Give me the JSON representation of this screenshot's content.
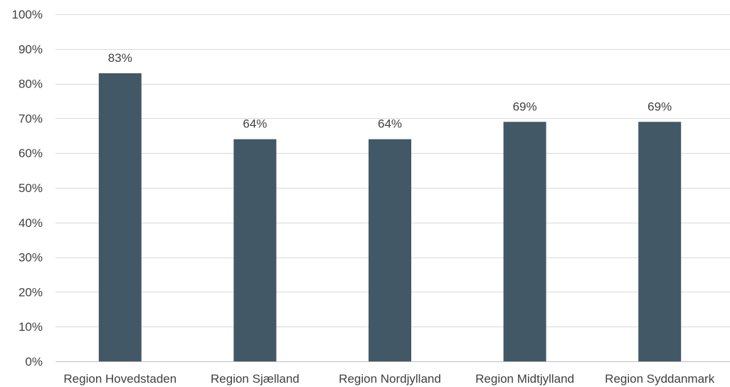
{
  "chart_data": {
    "type": "bar",
    "title": "",
    "xlabel": "",
    "ylabel": "",
    "categories": [
      "Region Hovedstaden",
      "Region Sjælland",
      "Region Nordjylland",
      "Region Midtjylland",
      "Region Syddanmark"
    ],
    "values": [
      83,
      64,
      64,
      69,
      69
    ],
    "data_labels": [
      "83%",
      "64%",
      "64%",
      "69%",
      "69%"
    ],
    "ylim": [
      0,
      100
    ],
    "y_ticks": [
      "0%",
      "10%",
      "20%",
      "30%",
      "40%",
      "50%",
      "60%",
      "70%",
      "80%",
      "90%",
      "100%"
    ],
    "grid": true,
    "legend": "none",
    "colors": {
      "bar": "#435866"
    }
  }
}
